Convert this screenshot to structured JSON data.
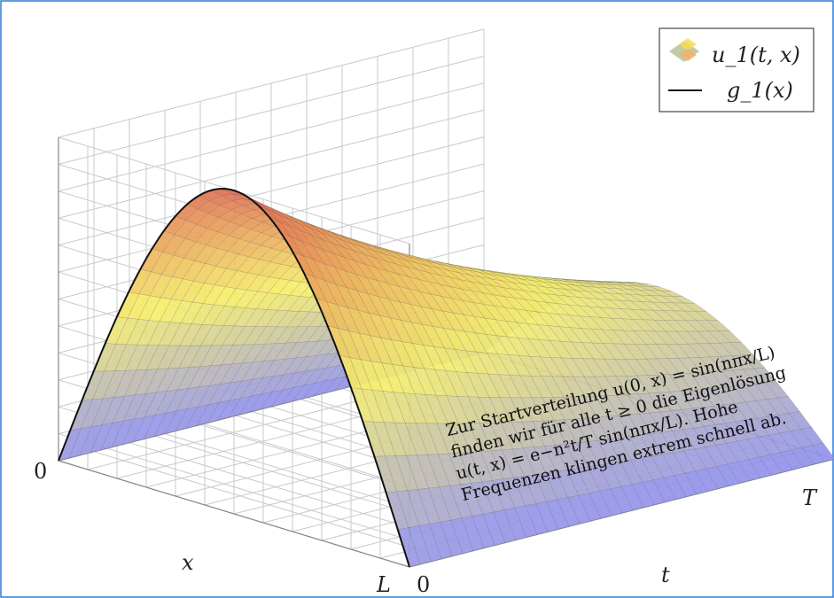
{
  "chart_data": {
    "type": "surface",
    "axes": {
      "x": {
        "label": "x",
        "ticks": [
          "0",
          "L"
        ]
      },
      "t": {
        "label": "t",
        "ticks": [
          "0",
          "T"
        ]
      }
    },
    "surface": {
      "formula": "u1(t,x) = e^{-t/T} sin(pi x / L)",
      "x_domain": [
        0,
        1
      ],
      "t_domain": [
        0,
        1
      ],
      "u_range": [
        0,
        1
      ],
      "colormap": [
        "#8f8ff2",
        "#f6ef6a",
        "#e06a52"
      ]
    },
    "legend": {
      "position": "top-right",
      "entries": [
        {
          "name": "u_1(t, x)",
          "kind": "surface",
          "swatch": [
            "#8fa060",
            "#f3de55",
            "#f5b06a"
          ]
        },
        {
          "name": "g_1(x)",
          "kind": "line",
          "color": "#111111"
        }
      ]
    },
    "curve_g1": {
      "name": "g_1(x)",
      "formula": "sin(pi x / L) at t = 0"
    },
    "annotation": [
      "Zur Startverteilung u(0, x) = sin(nπx/L)",
      "finden wir für alle t ≥ 0 die Eigenlösung",
      "u(t, x) = e−n²t/T sin(nπx/L). Hohe",
      "Frequenzen klingen extrem schnell ab."
    ],
    "grid": true
  }
}
